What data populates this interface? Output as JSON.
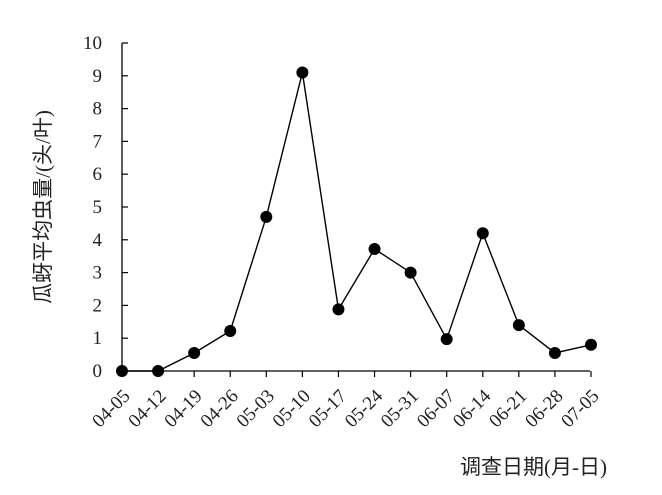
{
  "chart_data": {
    "type": "line",
    "title": "",
    "xlabel": "调查日期(月-日)",
    "ylabel": "瓜蚜平均虫量/(头/叶)",
    "categories": [
      "04-05",
      "04-12",
      "04-19",
      "04-26",
      "05-03",
      "05-10",
      "05-17",
      "05-24",
      "05-31",
      "06-07",
      "06-14",
      "06-21",
      "06-28",
      "07-05"
    ],
    "series": [
      {
        "values": [
          0,
          0,
          0.55,
          1.22,
          4.7,
          9.1,
          1.88,
          3.72,
          3.0,
          0.97,
          4.2,
          1.4,
          0.55,
          0.8
        ]
      }
    ],
    "yticks": [
      "0",
      "1",
      "2",
      "3",
      "4",
      "5",
      "6",
      "7",
      "8",
      "9",
      "10"
    ],
    "ylim": [
      0,
      10
    ],
    "grid": false,
    "legend": "none"
  }
}
